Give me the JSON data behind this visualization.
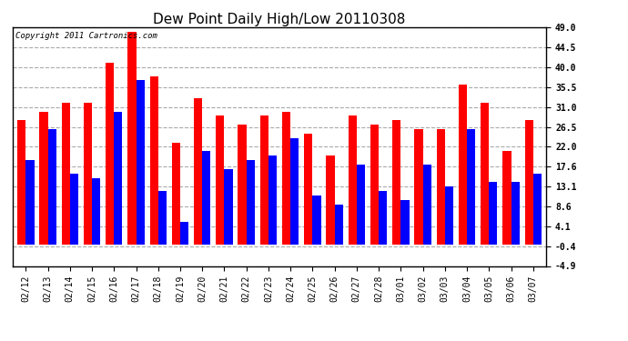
{
  "title": "Dew Point Daily High/Low 20110308",
  "copyright": "Copyright 2011 Cartronics.com",
  "dates": [
    "02/12",
    "02/13",
    "02/14",
    "02/15",
    "02/16",
    "02/17",
    "02/18",
    "02/19",
    "02/20",
    "02/21",
    "02/22",
    "02/23",
    "02/24",
    "02/25",
    "02/26",
    "02/27",
    "02/28",
    "03/01",
    "03/02",
    "03/03",
    "03/04",
    "03/05",
    "03/06",
    "03/07"
  ],
  "highs": [
    28,
    30,
    32,
    32,
    41,
    48,
    38,
    23,
    33,
    29,
    27,
    29,
    30,
    25,
    20,
    29,
    27,
    28,
    26,
    26,
    36,
    32,
    21,
    28
  ],
  "lows": [
    19,
    26,
    16,
    15,
    30,
    37,
    12,
    5,
    21,
    17,
    19,
    20,
    24,
    11,
    9,
    18,
    12,
    10,
    18,
    13,
    26,
    14,
    14,
    16
  ],
  "high_color": "#ff0000",
  "low_color": "#0000ff",
  "bar_width": 0.38,
  "ylim_min": -4.9,
  "ylim_max": 49.0,
  "yticks": [
    -4.9,
    -0.4,
    4.1,
    8.6,
    13.1,
    17.6,
    22.0,
    26.5,
    31.0,
    35.5,
    40.0,
    44.5,
    49.0
  ],
  "grid_color": "#aaaaaa",
  "bg_color": "#ffffff",
  "title_fontsize": 11,
  "tick_fontsize": 7,
  "copyright_fontsize": 6.5
}
